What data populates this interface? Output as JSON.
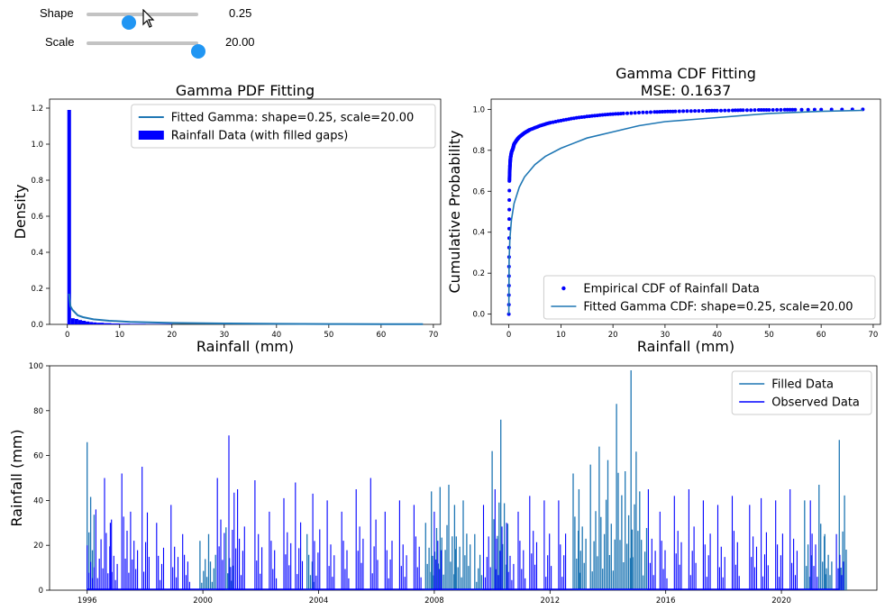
{
  "controls": [
    {
      "label": "Shape",
      "value": 0.25,
      "display": "0.25",
      "min": 0.1,
      "max": 0.5
    },
    {
      "label": "Scale",
      "value": 20.0,
      "display": "20.00",
      "min": 1,
      "max": 20
    }
  ],
  "chart_data": [
    {
      "type": "bar+line",
      "title": "Gamma PDF Fitting",
      "xlabel": "Rainfall (mm)",
      "ylabel": "Density",
      "xlim": [
        -3.4,
        71.4
      ],
      "ylim": [
        0,
        1.25
      ],
      "xticks": [
        0,
        10,
        20,
        30,
        40,
        50,
        60,
        70
      ],
      "yticks": [
        0.0,
        0.2,
        0.4,
        0.6,
        0.8,
        1.0,
        1.2
      ],
      "legend_position": "top-right",
      "series": [
        {
          "name": "Fitted Gamma: shape=0.25, scale=20.00",
          "kind": "line",
          "color": "#1f77b4",
          "x": [
            0.3,
            0.6,
            1,
            2,
            3,
            5,
            8,
            12,
            20,
            30,
            40,
            50,
            60,
            68
          ],
          "y": [
            0.17,
            0.1,
            0.08,
            0.05,
            0.04,
            0.028,
            0.02,
            0.014,
            0.008,
            0.005,
            0.003,
            0.002,
            0.001,
            0.0008
          ]
        },
        {
          "name": "Rainfall Data (with filled gaps)",
          "kind": "histogram",
          "color": "#0000ff",
          "bin_edges": [
            0,
            0.7,
            1.4,
            2.1,
            2.8,
            3.5,
            4.2,
            4.9,
            5.6,
            7,
            8.4,
            10,
            12,
            15,
            20
          ],
          "values": [
            1.19,
            0.034,
            0.03,
            0.024,
            0.02,
            0.016,
            0.013,
            0.011,
            0.009,
            0.007,
            0.005,
            0.004,
            0.003,
            0.002
          ]
        }
      ]
    },
    {
      "type": "scatter+line",
      "title": "Gamma CDF Fitting",
      "subtitle": "MSE: 0.1637",
      "xlabel": "Rainfall (mm)",
      "ylabel": "Cumulative Probability",
      "xlim": [
        -3.4,
        71.4
      ],
      "ylim": [
        -0.05,
        1.05
      ],
      "xticks": [
        0,
        10,
        20,
        30,
        40,
        50,
        60,
        70
      ],
      "yticks": [
        0.0,
        0.2,
        0.4,
        0.6,
        0.8,
        1.0
      ],
      "legend_position": "lower-right",
      "series": [
        {
          "name": "Empirical CDF of Rainfall Data",
          "kind": "scatter",
          "color": "#0000ff",
          "x": [
            0,
            0.1,
            0.2,
            0.3,
            0.5,
            0.8,
            1,
            1.5,
            2,
            3,
            4,
            5,
            6,
            7,
            8,
            10,
            12,
            14,
            16,
            18,
            20,
            22,
            25,
            28,
            30,
            32,
            35,
            38,
            40,
            43,
            45,
            48,
            50,
            53,
            55,
            60,
            68
          ],
          "y": [
            0.0,
            0.65,
            0.72,
            0.76,
            0.79,
            0.81,
            0.83,
            0.85,
            0.865,
            0.885,
            0.9,
            0.91,
            0.92,
            0.928,
            0.935,
            0.945,
            0.955,
            0.962,
            0.968,
            0.973,
            0.977,
            0.98,
            0.984,
            0.987,
            0.989,
            0.99,
            0.992,
            0.993,
            0.994,
            0.995,
            0.996,
            0.997,
            0.997,
            0.998,
            0.998,
            0.999,
            1.0
          ]
        },
        {
          "name": "Fitted Gamma CDF: shape=0.25, scale=20.00",
          "kind": "line",
          "color": "#1f77b4",
          "x": [
            0,
            0.05,
            0.2,
            0.5,
            1,
            2,
            3,
            5,
            7,
            10,
            15,
            20,
            25,
            30,
            40,
            50,
            60,
            68
          ],
          "y": [
            0.0,
            0.26,
            0.37,
            0.46,
            0.54,
            0.62,
            0.67,
            0.73,
            0.77,
            0.81,
            0.86,
            0.89,
            0.92,
            0.94,
            0.96,
            0.98,
            0.99,
            0.995
          ]
        }
      ]
    },
    {
      "type": "line",
      "title": "",
      "xlabel": "",
      "ylabel": "Rainfall (mm)",
      "xlim": [
        1994.7,
        2023.3
      ],
      "ylim": [
        0,
        100
      ],
      "xticks": [
        1996,
        2000,
        2004,
        2008,
        2012,
        2016,
        2020
      ],
      "yticks": [
        0,
        20,
        40,
        60,
        80,
        100
      ],
      "legend_position": "top-right",
      "series": [
        {
          "name": "Filled Data",
          "color": "#1f77b4",
          "x": [
            1996.0,
            1999.9,
            2000.2,
            2000.8,
            2003.6,
            2007.7,
            2007.9,
            2008.2,
            2008.5,
            2008.7,
            2009.0,
            2009.4,
            2010.0,
            2010.3,
            2012.8,
            2013.0,
            2013.4,
            2013.7,
            2014.0,
            2014.3,
            2014.6,
            2014.8,
            2015.1,
            2020.8,
            2021.3,
            2021.5,
            2022.0
          ],
          "y": [
            66,
            22,
            25,
            28,
            25,
            30,
            44,
            46,
            47,
            38,
            40,
            25,
            62,
            76,
            52,
            45,
            56,
            64,
            58,
            83,
            53,
            98,
            44,
            40,
            47,
            25,
            67
          ]
        },
        {
          "name": "Observed Data",
          "color": "#0000ff",
          "x": [
            1996.0,
            1996.3,
            1996.6,
            1996.8,
            1997.2,
            1997.5,
            1997.9,
            1998.4,
            1998.9,
            1999.3,
            2000.5,
            2000.9,
            2001.2,
            2001.8,
            2002.3,
            2002.8,
            2003.2,
            2003.8,
            2004.3,
            2004.8,
            2005.3,
            2005.8,
            2006.3,
            2006.8,
            2007.3,
            2008.0,
            2009.7,
            2010.1,
            2010.5,
            2010.9,
            2011.3,
            2011.8,
            2012.3,
            2015.4,
            2015.8,
            2016.3,
            2016.8,
            2017.3,
            2017.8,
            2018.3,
            2018.9,
            2019.3,
            2019.8,
            2020.3,
            2021.0,
            2021.9
          ],
          "y": [
            20,
            36,
            50,
            30,
            52,
            35,
            55,
            30,
            38,
            25,
            50,
            69,
            45,
            49,
            35,
            41,
            48,
            43,
            40,
            35,
            45,
            50,
            35,
            40,
            38,
            35,
            38,
            45,
            30,
            35,
            42,
            40,
            40,
            45,
            35,
            42,
            45,
            40,
            38,
            42,
            38,
            41,
            40,
            45,
            40,
            25
          ]
        }
      ]
    }
  ]
}
